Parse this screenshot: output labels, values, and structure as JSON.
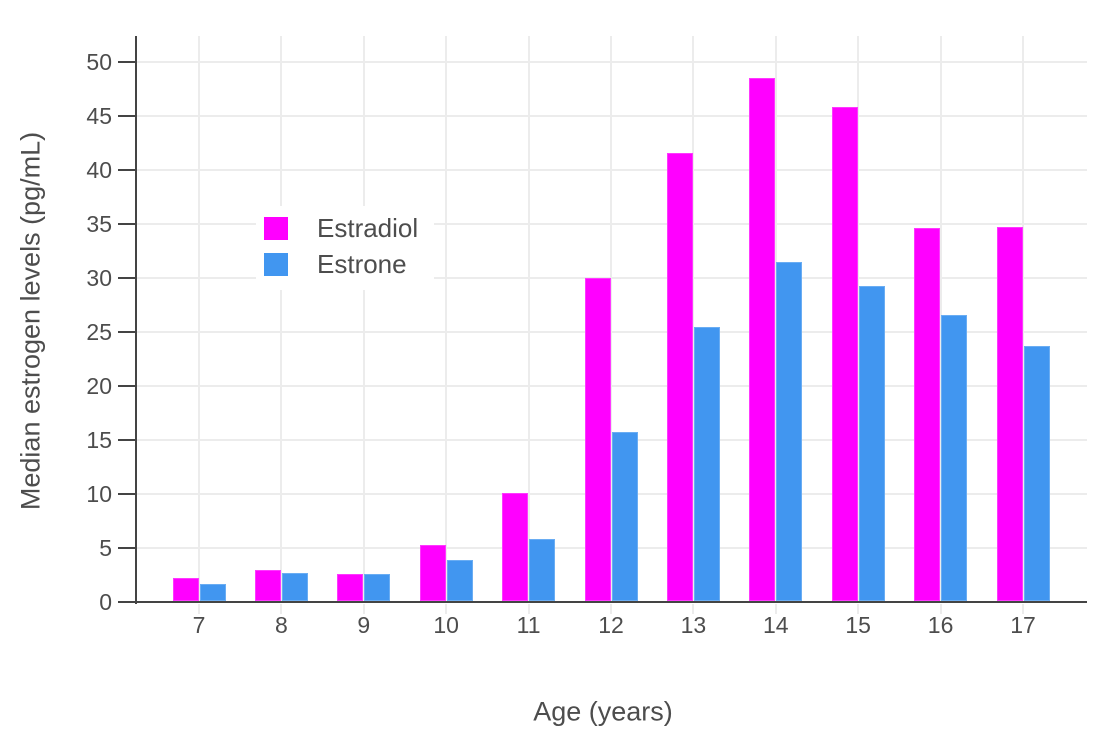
{
  "chart_data": {
    "type": "bar",
    "title": "",
    "xlabel": "Age (years)",
    "ylabel": "Median estrogen levels (pg/mL)",
    "categories": [
      "7",
      "8",
      "9",
      "10",
      "11",
      "12",
      "13",
      "14",
      "15",
      "16",
      "17"
    ],
    "series": [
      {
        "name": "Estradiol",
        "color": "#FF00FF",
        "values": [
          2.2,
          3.0,
          2.6,
          5.3,
          10.1,
          30.0,
          41.6,
          48.5,
          45.8,
          34.6,
          34.7
        ]
      },
      {
        "name": "Estrone",
        "color": "#4196F0",
        "values": [
          1.7,
          2.7,
          2.6,
          3.9,
          5.8,
          15.7,
          25.5,
          31.5,
          29.3,
          26.6,
          23.7
        ]
      }
    ],
    "ylim": [
      0,
      52.4
    ],
    "yticks": [
      0,
      5,
      10,
      15,
      20,
      25,
      30,
      35,
      40,
      45,
      50
    ],
    "grid": true,
    "legend_position": "inside-top-left",
    "colors": {
      "axis_line": "#444444",
      "gridline": "#ececec",
      "tick_text": "#4d4d4d",
      "background": "#ffffff"
    }
  }
}
